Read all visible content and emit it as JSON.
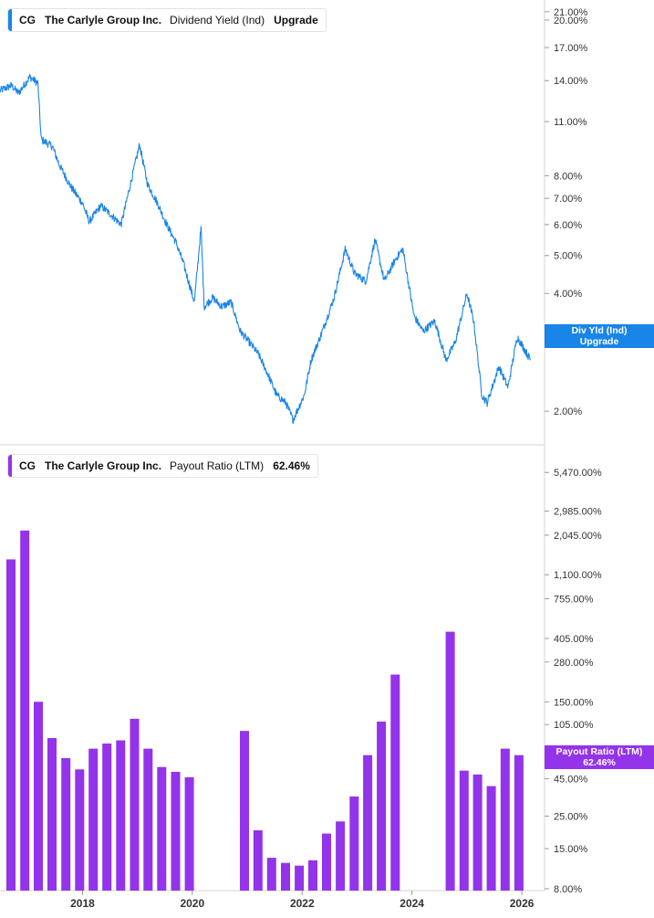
{
  "colors": {
    "yield_line": "#1a85e8",
    "payout_bar": "#9333ea",
    "axis_text": "#333333",
    "divider": "#d4d4d4"
  },
  "top_panel": {
    "legend": {
      "ticker": "CG",
      "company": "The Carlyle Group Inc.",
      "metric": "Dividend Yield (Ind)",
      "value": "Upgrade"
    },
    "tag": {
      "line1": "Div Yld (Ind)",
      "line2": "Upgrade"
    }
  },
  "bottom_panel": {
    "legend": {
      "ticker": "CG",
      "company": "The Carlyle Group Inc.",
      "metric": "Payout Ratio (LTM)",
      "value": "62.46%"
    },
    "tag": {
      "line1": "Payout Ratio (LTM)",
      "line2": "62.46%"
    }
  },
  "chart_data": [
    {
      "type": "line",
      "series": [
        {
          "name": "Dividend Yield (Ind)"
        }
      ],
      "scale": "log",
      "y_ticks": [
        2,
        3,
        4,
        5,
        6,
        7,
        8,
        11,
        14,
        17,
        20,
        21
      ],
      "y_tick_labels": [
        "2.00%",
        "3.00%",
        "4.00%",
        "5.00%",
        "6.00%",
        "7.00%",
        "8.00%",
        "11.00%",
        "14.00%",
        "17.00%",
        "20.00%",
        "21.00%"
      ],
      "ylim": [
        1.75,
        22.5
      ],
      "xlim": [
        "2016-07-01",
        "2026-06-01"
      ],
      "keypoints": [
        [
          "2016-07-01",
          13.2
        ],
        [
          "2016-09-15",
          13.6
        ],
        [
          "2016-11-01",
          13.0
        ],
        [
          "2017-01-15",
          14.3
        ],
        [
          "2017-03-10",
          13.8
        ],
        [
          "2017-04-01",
          9.9
        ],
        [
          "2017-06-15",
          9.5
        ],
        [
          "2017-08-01",
          8.5
        ],
        [
          "2017-10-15",
          7.5
        ],
        [
          "2018-01-01",
          6.8
        ],
        [
          "2018-02-15",
          6.1
        ],
        [
          "2018-05-01",
          6.7
        ],
        [
          "2018-07-01",
          6.4
        ],
        [
          "2018-09-15",
          6.0
        ],
        [
          "2018-11-01",
          7.2
        ],
        [
          "2019-01-15",
          9.6
        ],
        [
          "2019-03-10",
          7.6
        ],
        [
          "2019-05-15",
          6.8
        ],
        [
          "2019-07-15",
          6.0
        ],
        [
          "2019-09-15",
          5.4
        ],
        [
          "2019-11-01",
          4.8
        ],
        [
          "2020-01-15",
          3.8
        ],
        [
          "2020-02-28",
          5.9
        ],
        [
          "2020-03-20",
          3.7
        ],
        [
          "2020-05-15",
          3.9
        ],
        [
          "2020-07-15",
          3.7
        ],
        [
          "2020-09-15",
          3.8
        ],
        [
          "2020-11-15",
          3.2
        ],
        [
          "2021-01-15",
          3.0
        ],
        [
          "2021-03-15",
          2.8
        ],
        [
          "2021-05-15",
          2.5
        ],
        [
          "2021-07-15",
          2.2
        ],
        [
          "2021-09-15",
          2.1
        ],
        [
          "2021-11-01",
          1.9
        ],
        [
          "2022-01-15",
          2.2
        ],
        [
          "2022-03-01",
          2.7
        ],
        [
          "2022-05-15",
          3.2
        ],
        [
          "2022-08-01",
          3.9
        ],
        [
          "2022-10-15",
          5.2
        ],
        [
          "2022-12-15",
          4.5
        ],
        [
          "2023-03-01",
          4.3
        ],
        [
          "2023-05-01",
          5.5
        ],
        [
          "2023-07-01",
          4.3
        ],
        [
          "2023-09-15",
          4.9
        ],
        [
          "2023-11-01",
          5.2
        ],
        [
          "2024-01-15",
          3.5
        ],
        [
          "2024-03-15",
          3.2
        ],
        [
          "2024-06-01",
          3.4
        ],
        [
          "2024-08-15",
          2.7
        ],
        [
          "2024-10-15",
          3.0
        ],
        [
          "2025-01-01",
          4.0
        ],
        [
          "2025-02-15",
          3.4
        ],
        [
          "2025-04-10",
          2.2
        ],
        [
          "2025-05-15",
          2.1
        ],
        [
          "2025-08-01",
          2.6
        ],
        [
          "2025-10-01",
          2.3
        ],
        [
          "2025-12-01",
          3.1
        ],
        [
          "2026-03-01",
          2.7
        ]
      ],
      "x_ticks": [
        "2018",
        "2020",
        "2022",
        "2024",
        "2026"
      ]
    },
    {
      "type": "bar",
      "series": [
        {
          "name": "Payout Ratio (LTM)"
        }
      ],
      "scale": "log",
      "y_ticks": [
        8,
        15,
        25,
        45,
        105,
        150,
        280,
        405,
        755,
        1100,
        2045,
        2985,
        5470
      ],
      "y_tick_labels": [
        "8.00%",
        "15.00%",
        "25.00%",
        "45.00%",
        "105.00%",
        "150.00%",
        "280.00%",
        "405.00%",
        "755.00%",
        "1,100.00%",
        "2,045.00%",
        "2,985.00%",
        "5,470.00%"
      ],
      "ylim": [
        8,
        7000
      ],
      "xlim": [
        "2016-07-01",
        "2026-06-01"
      ],
      "bars": [
        [
          "2016-09-30",
          1400
        ],
        [
          "2016-12-31",
          2200
        ],
        [
          "2017-03-31",
          150
        ],
        [
          "2017-06-30",
          85
        ],
        [
          "2017-09-30",
          62
        ],
        [
          "2017-12-31",
          52
        ],
        [
          "2018-03-31",
          72
        ],
        [
          "2018-06-30",
          78
        ],
        [
          "2018-09-30",
          82
        ],
        [
          "2018-12-31",
          115
        ],
        [
          "2019-03-31",
          72
        ],
        [
          "2019-06-30",
          54
        ],
        [
          "2019-09-30",
          50
        ],
        [
          "2019-12-31",
          46
        ],
        [
          "2020-12-31",
          95
        ],
        [
          "2021-03-31",
          20
        ],
        [
          "2021-06-30",
          13
        ],
        [
          "2021-09-30",
          12
        ],
        [
          "2021-12-31",
          11.5
        ],
        [
          "2022-03-31",
          12.5
        ],
        [
          "2022-06-30",
          19
        ],
        [
          "2022-09-30",
          23
        ],
        [
          "2022-12-31",
          34
        ],
        [
          "2023-03-31",
          65
        ],
        [
          "2023-06-30",
          110
        ],
        [
          "2023-09-30",
          230
        ],
        [
          "2024-09-30",
          450
        ],
        [
          "2024-12-31",
          51
        ],
        [
          "2025-03-31",
          48
        ],
        [
          "2025-06-30",
          40
        ],
        [
          "2025-09-30",
          72
        ],
        [
          "2025-12-31",
          65
        ]
      ],
      "x_ticks": [
        "2018",
        "2020",
        "2022",
        "2024",
        "2026"
      ]
    }
  ]
}
